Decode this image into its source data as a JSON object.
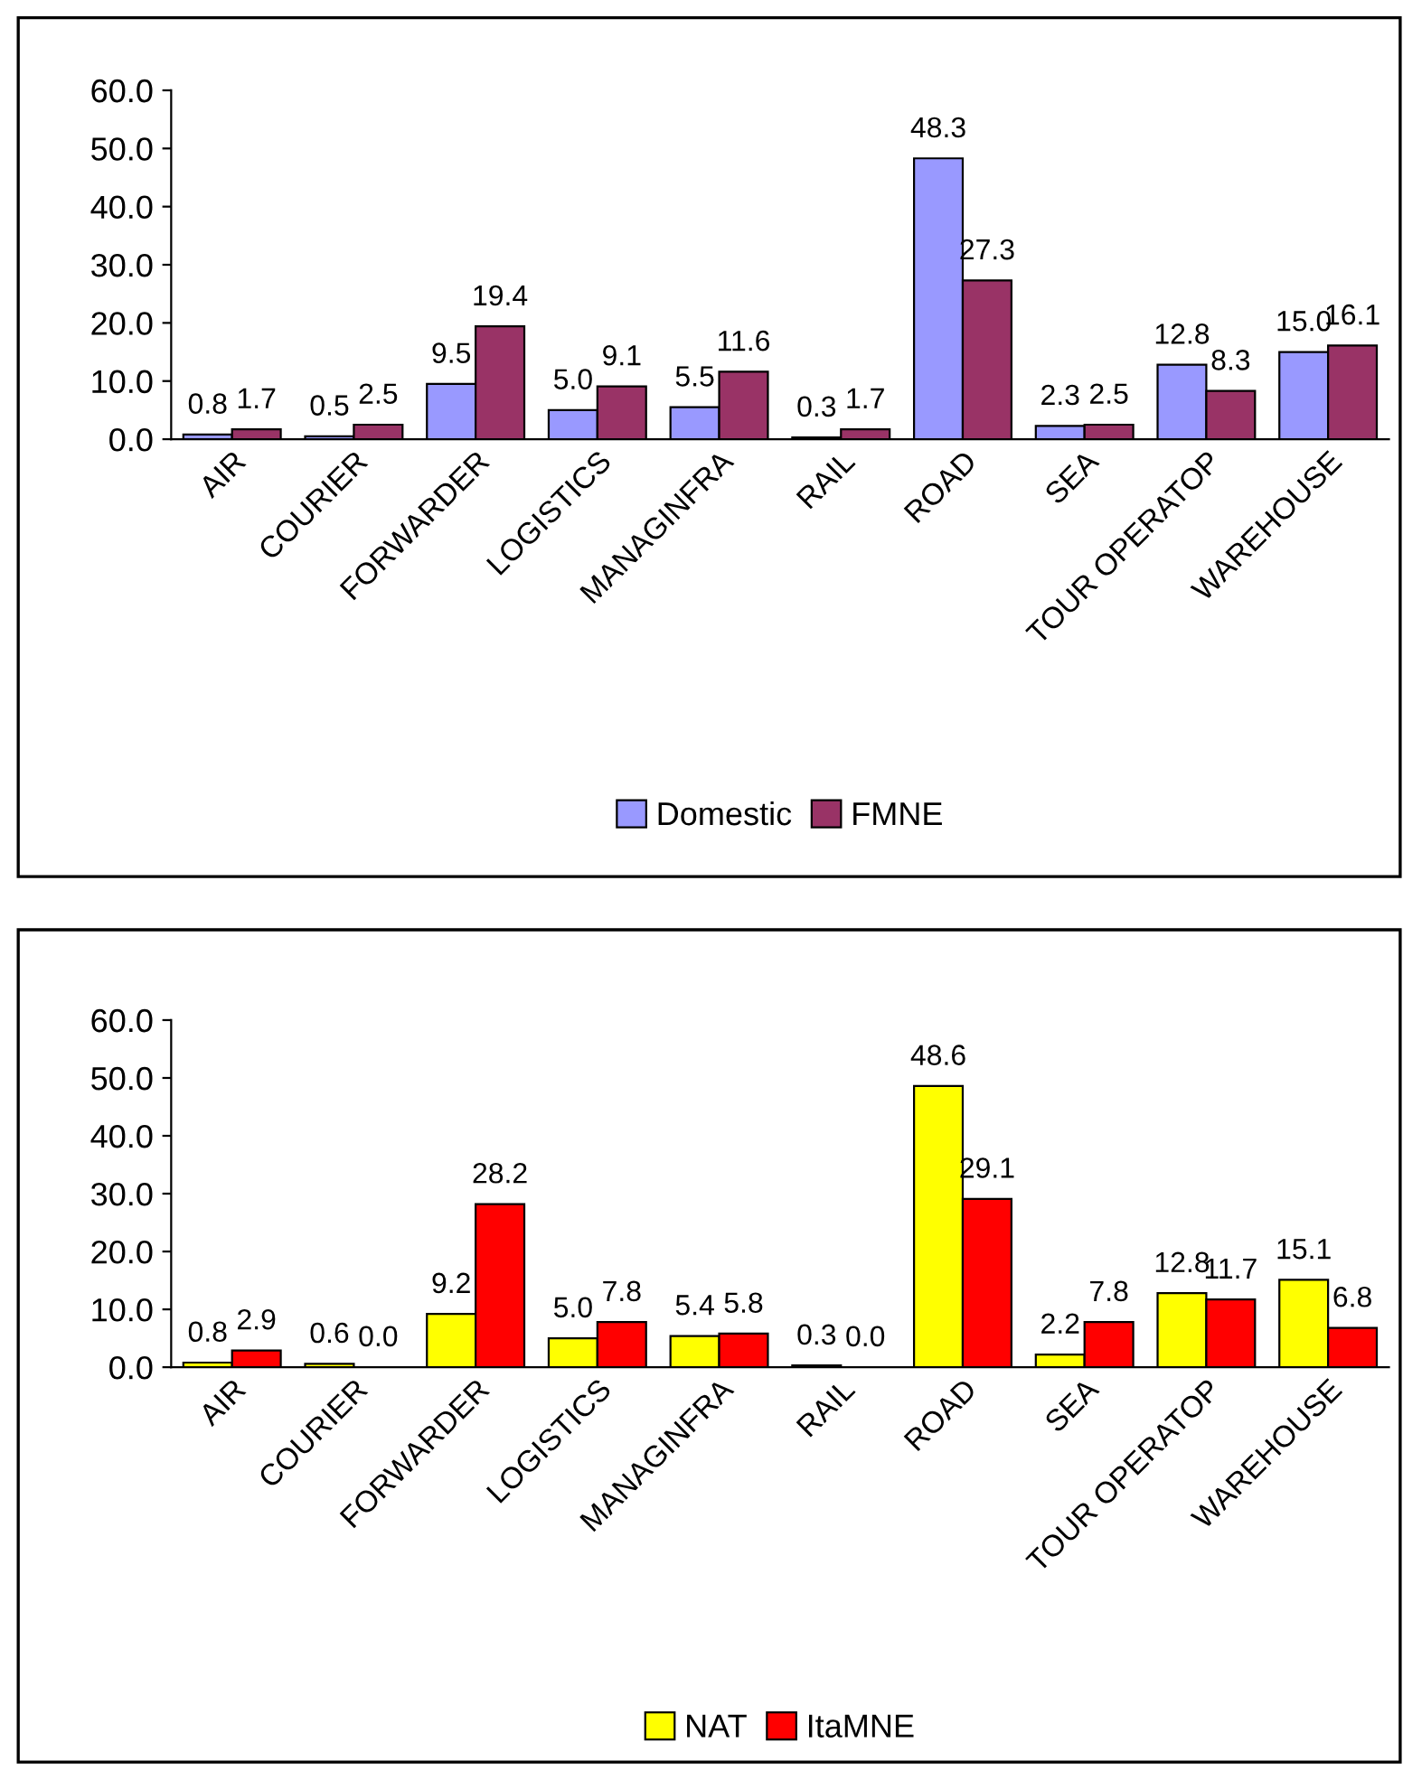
{
  "chart_data": [
    {
      "type": "bar",
      "categories": [
        "AIR",
        "COURIER",
        "FORWARDER",
        "LOGISTICS",
        "MANAGINFRA",
        "RAIL",
        "ROAD",
        "SEA",
        "TOUR OPERATOP",
        "WAREHOUSE"
      ],
      "series": [
        {
          "name": "Domestic",
          "color": "#9999ff",
          "values": [
            0.8,
            0.5,
            9.5,
            5.0,
            5.5,
            0.3,
            48.3,
            2.3,
            12.8,
            15.0
          ],
          "value_labels": [
            "0.8",
            "0.5",
            "9.5",
            "5.0",
            "5.5",
            "0.3",
            "48.3",
            "2.3",
            "12.8",
            "15.0"
          ]
        },
        {
          "name": "FMNE",
          "color": "#993366",
          "values": [
            1.7,
            2.5,
            19.4,
            9.1,
            11.6,
            1.7,
            27.3,
            2.5,
            8.3,
            16.1
          ],
          "value_labels": [
            "1.7",
            "2.5",
            "19.4",
            "9.1",
            "11.6",
            "1.7",
            "27.3",
            "2.5",
            "8.3",
            "16.1"
          ]
        }
      ],
      "ylim": [
        0,
        60
      ],
      "yticks": [
        {
          "value": 0,
          "label": "0.0"
        },
        {
          "value": 10,
          "label": "10.0"
        },
        {
          "value": 20,
          "label": "20.0"
        },
        {
          "value": 30,
          "label": "30.0"
        },
        {
          "value": 40,
          "label": "40.0"
        },
        {
          "value": 50,
          "label": "50.0"
        },
        {
          "value": 60,
          "label": "60.0"
        }
      ],
      "grid": false,
      "legend": "bottom"
    },
    {
      "type": "bar",
      "categories": [
        "AIR",
        "COURIER",
        "FORWARDER",
        "LOGISTICS",
        "MANAGINFRA",
        "RAIL",
        "ROAD",
        "SEA",
        "TOUR OPERATOP",
        "WAREHOUSE"
      ],
      "series": [
        {
          "name": "NAT",
          "color": "#ffff00",
          "values": [
            0.8,
            0.6,
            9.2,
            5.0,
            5.4,
            0.3,
            48.6,
            2.2,
            12.8,
            15.1
          ],
          "value_labels": [
            "0.8",
            "0.6",
            "9.2",
            "5.0",
            "5.4",
            "0.3",
            "48.6",
            "2.2",
            "12.8",
            "15.1"
          ]
        },
        {
          "name": "ItaMNE",
          "color": "#ff0000",
          "values": [
            2.9,
            0.0,
            28.2,
            7.8,
            5.8,
            0.0,
            29.1,
            7.8,
            11.7,
            6.8
          ],
          "value_labels": [
            "2.9",
            "0.0",
            "28.2",
            "7.8",
            "5.8",
            "0.0",
            "29.1",
            "7.8",
            "11.7",
            "6.8"
          ]
        }
      ],
      "ylim": [
        0,
        60
      ],
      "yticks": [
        {
          "value": 0,
          "label": "0.0"
        },
        {
          "value": 10,
          "label": "10.0"
        },
        {
          "value": 20,
          "label": "20.0"
        },
        {
          "value": 30,
          "label": "30.0"
        },
        {
          "value": 40,
          "label": "40.0"
        },
        {
          "value": 50,
          "label": "50.0"
        },
        {
          "value": 60,
          "label": "60.0"
        }
      ],
      "grid": false,
      "legend": "bottom"
    }
  ]
}
